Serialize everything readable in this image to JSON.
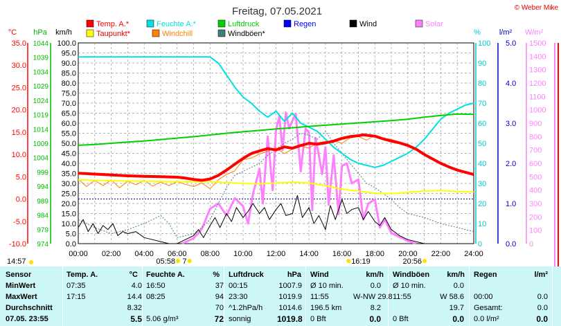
{
  "chart_data": {
    "type": "line",
    "title": "Freitag, 07.05.2021",
    "credit": "© Weber Mike",
    "x_ticks": [
      "00:00",
      "02:00",
      "04:00",
      "06:00",
      "08:00",
      "10:00",
      "12:00",
      "14:00",
      "16:00",
      "18:00",
      "20:00",
      "22:00",
      "24:00"
    ],
    "axes": {
      "temp": {
        "unit": "°C",
        "ticks": [
          "35.0",
          "30.0",
          "25.0",
          "20.0",
          "15.0",
          "10.0",
          "5.0",
          "0.0",
          "-5.0",
          "-10.0"
        ],
        "color": "#ff0000",
        "range": [
          -10,
          35
        ]
      },
      "pressure": {
        "unit": "hPa",
        "ticks": [
          "1044",
          "1039",
          "1034",
          "1029",
          "1024",
          "1019",
          "1014",
          "1009",
          "1004",
          "999",
          "994",
          "989",
          "984",
          "979",
          "974"
        ],
        "color": "#00b800",
        "range": [
          974,
          1044
        ]
      },
      "wind": {
        "unit": "km/h",
        "ticks": [
          "100.0",
          "95.0",
          "90.0",
          "85.0",
          "80.0",
          "75.0",
          "70.0",
          "65.0",
          "60.0",
          "55.0",
          "50.0",
          "45.0",
          "40.0",
          "35.0",
          "30.0",
          "25.0",
          "20.0",
          "15.0",
          "10.0",
          "5.0",
          "0.0"
        ],
        "color": "#000000",
        "range": [
          0,
          100
        ]
      },
      "humidity": {
        "unit": "%",
        "ticks": [
          "100",
          "90",
          "80",
          "70",
          "60",
          "50",
          "40",
          "30",
          "20",
          "10",
          "0"
        ],
        "color": "#00c8c8",
        "range": [
          0,
          100
        ]
      },
      "rain": {
        "unit": "l/m²",
        "ticks": [
          "5.0",
          "4.0",
          "3.0",
          "2.0",
          "1.0",
          "0.0"
        ],
        "color": "#0000c8",
        "range": [
          0,
          5
        ]
      },
      "solar": {
        "unit": "W/m²",
        "ticks": [
          "1500",
          "1400",
          "1300",
          "1200",
          "1100",
          "1000",
          "900",
          "800",
          "700",
          "600",
          "500",
          "400",
          "300",
          "200",
          "100",
          "0"
        ],
        "color": "#ff80ff",
        "range": [
          0,
          1500
        ]
      }
    },
    "legend": [
      {
        "name": "Temp. A.*",
        "color": "#ff0000"
      },
      {
        "name": "Feuchte A.*",
        "color": "#00e0e0"
      },
      {
        "name": "Luftdruck",
        "color": "#00d000"
      },
      {
        "name": "Regen",
        "color": "#0000ff"
      },
      {
        "name": "Wind",
        "color": "#000000"
      },
      {
        "name": "Solar",
        "color": "#ff80ff"
      },
      {
        "name": "Taupunkt*",
        "color": "#ffff00"
      },
      {
        "name": "Windchill",
        "color": "#ff8000"
      },
      {
        "name": "Windböen*",
        "color": "#408080"
      }
    ],
    "markers": [
      {
        "label": "14:57",
        "time": "14:57",
        "side": "left"
      },
      {
        "label": "05:58",
        "time": "05:58"
      },
      {
        "label": "7",
        "time": "06:40"
      },
      {
        "label": "16:19",
        "time": "16:19"
      },
      {
        "label": "20:56",
        "time": "20:56"
      }
    ],
    "series": [
      {
        "name": "Temp. A.*",
        "axis": "temp",
        "x": [
          0,
          1,
          2,
          3,
          4,
          5,
          6,
          6.5,
          7,
          7.5,
          8,
          8.5,
          9,
          9.5,
          10,
          10.5,
          11,
          11.5,
          12,
          12.5,
          13,
          13.5,
          14,
          14.5,
          15,
          15.5,
          16,
          16.5,
          17,
          17.3,
          17.5,
          18,
          18.5,
          19,
          19.5,
          20,
          20.5,
          21,
          21.5,
          22,
          22.5,
          23,
          23.5,
          24
        ],
        "y": [
          5.8,
          5.6,
          5.4,
          5.2,
          5.1,
          5.0,
          4.9,
          4.7,
          4.4,
          4.2,
          4.5,
          5.3,
          6.5,
          7.8,
          9.1,
          10.2,
          10.8,
          11.3,
          11.0,
          11.7,
          11.4,
          12.0,
          12.5,
          12.3,
          12.6,
          13.0,
          13.6,
          14.0,
          14.2,
          14.4,
          14.3,
          14.1,
          13.5,
          13.0,
          12.6,
          12.0,
          11.2,
          10.0,
          9.0,
          8.0,
          7.2,
          6.5,
          6.0,
          5.5
        ]
      },
      {
        "name": "Feuchte A.*",
        "axis": "humidity",
        "x": [
          0,
          1,
          2,
          3,
          4,
          5,
          6,
          7,
          8,
          8.5,
          9,
          9.5,
          10,
          10.5,
          11,
          11.5,
          12,
          12.5,
          13,
          13.5,
          14,
          14.5,
          15,
          15.5,
          16,
          16.5,
          17,
          17.5,
          18,
          18.5,
          19,
          19.5,
          20,
          20.5,
          21,
          21.5,
          22,
          22.5,
          23,
          23.5,
          24
        ],
        "y": [
          93,
          93,
          93,
          93,
          93,
          93,
          93,
          93,
          93,
          90,
          84,
          78,
          73,
          70,
          66,
          63,
          66,
          61,
          65,
          60,
          58,
          56,
          52,
          48,
          45,
          42,
          40,
          39,
          38,
          39,
          41,
          43,
          45,
          48,
          52,
          57,
          62,
          65,
          67,
          69,
          70
        ]
      },
      {
        "name": "Luftdruck",
        "axis": "pressure",
        "x": [
          0,
          1,
          2,
          3,
          4,
          5,
          6,
          7,
          8,
          9,
          10,
          11,
          12,
          13,
          14,
          15,
          16,
          17,
          18,
          19,
          20,
          21,
          22,
          23,
          24
        ],
        "y": [
          1008.3,
          1008.6,
          1009.0,
          1009.4,
          1009.8,
          1010.3,
          1010.8,
          1011.3,
          1011.9,
          1012.5,
          1013.0,
          1013.5,
          1014.0,
          1014.4,
          1014.9,
          1015.3,
          1015.7,
          1016.1,
          1016.5,
          1016.9,
          1017.4,
          1018.1,
          1018.7,
          1019.2,
          1019.1
        ]
      },
      {
        "name": "Taupunkt*",
        "axis": "temp",
        "x": [
          0,
          2,
          4,
          6,
          8,
          9,
          10,
          11,
          12,
          13,
          14,
          15,
          16,
          17,
          18,
          19,
          20,
          21,
          22,
          23,
          24
        ],
        "y": [
          4.3,
          4.1,
          4.0,
          3.9,
          3.9,
          3.7,
          3.5,
          3.4,
          3.6,
          3.8,
          3.6,
          3.0,
          2.2,
          1.8,
          1.3,
          1.2,
          1.5,
          1.8,
          1.9,
          1.7,
          1.6
        ]
      },
      {
        "name": "Windchill",
        "axis": "temp",
        "x": [
          0,
          0.5,
          1,
          1.5,
          2,
          2.5,
          3,
          3.5,
          4,
          4.5,
          5,
          5.5,
          6,
          6.5,
          7,
          7.5,
          8,
          8.5,
          9,
          9.5,
          10,
          10.5,
          11,
          11.5,
          12,
          12.5,
          13,
          13.5,
          14,
          14.5,
          15,
          15.5,
          16,
          16.5,
          17,
          17.5,
          18,
          18.5,
          19,
          19.5,
          20
        ],
        "y": [
          4.5,
          2.8,
          4.2,
          3.0,
          4.3,
          2.5,
          4.0,
          3.2,
          4.2,
          2.9,
          3.8,
          3.0,
          3.9,
          3.3,
          2.8,
          3.6,
          2.3,
          4.3,
          5.5,
          6.3,
          8.8,
          9.2,
          10.1,
          10.7,
          11.5,
          10.2,
          11.2,
          11.9,
          11.4,
          12.6,
          12.9,
          13.1,
          12.5,
          13.7,
          14.0,
          13.2,
          14.3,
          13.6,
          13.4,
          12.8,
          12.1
        ]
      },
      {
        "name": "Windböen*",
        "axis": "wind",
        "x": [
          0,
          1,
          2,
          3,
          4,
          5,
          5.5,
          6,
          7,
          7.5,
          8,
          8.5,
          9,
          9.5,
          10,
          10.5,
          11,
          11.5,
          12,
          12.5,
          13,
          13.5,
          14,
          14.5,
          15,
          15.5,
          16,
          16.5,
          17,
          17.5,
          18,
          18.5,
          19,
          19.5,
          20,
          21,
          22,
          23,
          24
        ],
        "y": [
          12,
          8,
          5,
          7,
          10,
          14,
          10,
          3,
          5,
          8,
          12,
          20,
          28,
          34,
          36,
          38,
          40,
          44,
          47,
          50,
          52,
          55,
          54,
          52,
          56,
          50,
          45,
          40,
          35,
          30,
          28,
          25,
          22,
          18,
          15,
          13,
          10,
          8,
          6
        ]
      },
      {
        "name": "Wind",
        "axis": "wind",
        "x": [
          0,
          0.3,
          0.6,
          0.9,
          1.2,
          1.5,
          1.8,
          2.1,
          2.4,
          2.7,
          3,
          3.5,
          4,
          4.5,
          5,
          5.5,
          6,
          6.5,
          7,
          7.3,
          7.6,
          8,
          8.3,
          8.6,
          9,
          9.3,
          9.6,
          10,
          10.3,
          10.6,
          11,
          11.3,
          11.6,
          12,
          12.3,
          12.6,
          13,
          13.3,
          13.6,
          14,
          14.3,
          14.6,
          15,
          15.3,
          15.6,
          16,
          16.3,
          16.6,
          17,
          17.3,
          17.6,
          18,
          18.3,
          18.6,
          19,
          19.5,
          20,
          20.5,
          21,
          22,
          23,
          24
        ],
        "y": [
          8,
          12,
          6,
          10,
          5,
          9,
          7,
          10,
          4,
          6,
          5,
          6,
          3,
          2,
          1,
          0,
          0,
          2,
          4,
          7,
          3,
          9,
          13,
          8,
          15,
          11,
          18,
          13,
          16,
          20,
          15,
          18,
          12,
          17,
          20,
          14,
          15,
          24,
          13,
          18,
          10,
          14,
          7,
          19,
          12,
          22,
          15,
          17,
          18,
          12,
          16,
          11,
          9,
          13,
          7,
          4,
          2,
          1,
          0,
          0,
          0,
          0
        ]
      },
      {
        "name": "Solar",
        "axis": "solar",
        "x": [
          6.3,
          7,
          7.5,
          8,
          8.5,
          9,
          9.5,
          10,
          10.3,
          10.6,
          11,
          11.2,
          11.5,
          11.8,
          12,
          12.2,
          12.4,
          12.6,
          12.8,
          13,
          13.2,
          13.5,
          13.8,
          14,
          14.2,
          14.4,
          14.6,
          14.8,
          15,
          15.2,
          15.5,
          15.8,
          16,
          16.3,
          16.6,
          17,
          17.3,
          17.6,
          18,
          18.3,
          18.6,
          19,
          19.5,
          20,
          20.5
        ],
        "y": [
          0,
          40,
          110,
          260,
          300,
          210,
          340,
          280,
          150,
          370,
          560,
          300,
          800,
          400,
          850,
          950,
          700,
          980,
          860,
          920,
          970,
          540,
          860,
          830,
          250,
          790,
          660,
          520,
          720,
          290,
          660,
          220,
          580,
          600,
          450,
          480,
          180,
          300,
          330,
          120,
          180,
          80,
          50,
          20,
          0
        ]
      }
    ]
  },
  "table": {
    "headers": {
      "sensor": "Sensor",
      "temp": "Temp. A.",
      "temp_unit": "°C",
      "hum": "Feuchte A.",
      "hum_unit": "%",
      "press": "Luftdruck",
      "press_unit": "hPa",
      "wind": "Wind",
      "wind_unit": "km/h",
      "gust": "Windböen",
      "gust_unit": "km/h",
      "rain": "Regen",
      "rain_unit": "l/m²"
    },
    "rows": {
      "labels": [
        "MinWert",
        "MaxWert",
        "Durchschnitt",
        "07.05. 23:55"
      ],
      "temp": [
        [
          "07:35",
          "4.0"
        ],
        [
          "17:15",
          "14.4"
        ],
        [
          "",
          "8.32"
        ],
        [
          "",
          "5.5"
        ]
      ],
      "hum": [
        [
          "16:50",
          "37"
        ],
        [
          "08:25",
          "94"
        ],
        [
          "",
          "70"
        ],
        [
          "5.06 g/m³",
          "72"
        ]
      ],
      "press": [
        [
          "00:15",
          "1007.9"
        ],
        [
          "23:30",
          "1019.9"
        ],
        [
          "^1.2hPa/h",
          "1014.6"
        ],
        [
          "sonnig",
          "1019.8"
        ]
      ],
      "wind": [
        [
          "Ø 10 min.",
          "0.0"
        ],
        [
          "11:55",
          "W-NW 29.8"
        ],
        [
          "196.5 km",
          "8.2"
        ],
        [
          "0 Bft",
          "0.0"
        ]
      ],
      "gust": [
        [
          "Ø 10 min.",
          "0.0"
        ],
        [
          "11:55",
          "W 58.6"
        ],
        [
          "",
          "19.7"
        ],
        [
          "0 Bft",
          "0.0"
        ]
      ],
      "rain": [
        [
          "",
          ""
        ],
        [
          "00:00",
          "0.0"
        ],
        [
          "Gesamt:",
          "0.0"
        ],
        [
          "0.0 l/m²",
          "0.0"
        ]
      ]
    }
  }
}
